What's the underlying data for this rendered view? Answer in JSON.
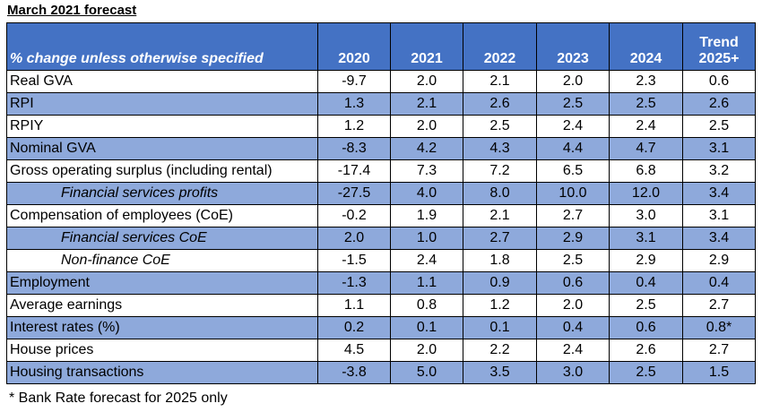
{
  "title": "March 2021 forecast",
  "header": {
    "label": "% change unless otherwise specified",
    "columns": [
      "2020",
      "2021",
      "2022",
      "2023",
      "2024"
    ],
    "trend_line1": "Trend",
    "trend_line2": "2025+"
  },
  "rows": [
    {
      "label": "Real GVA",
      "indent": false,
      "shaded": false,
      "values": [
        "-9.7",
        "2.0",
        "2.1",
        "2.0",
        "2.3",
        "0.6"
      ]
    },
    {
      "label": "RPI",
      "indent": false,
      "shaded": true,
      "values": [
        "1.3",
        "2.1",
        "2.6",
        "2.5",
        "2.5",
        "2.6"
      ]
    },
    {
      "label": "RPIY",
      "indent": false,
      "shaded": false,
      "values": [
        "1.2",
        "2.0",
        "2.5",
        "2.4",
        "2.4",
        "2.5"
      ]
    },
    {
      "label": "Nominal GVA",
      "indent": false,
      "shaded": true,
      "values": [
        "-8.3",
        "4.2",
        "4.3",
        "4.4",
        "4.7",
        "3.1"
      ]
    },
    {
      "label": "Gross operating surplus (including rental)",
      "indent": false,
      "shaded": false,
      "values": [
        "-17.4",
        "7.3",
        "7.2",
        "6.5",
        "6.8",
        "3.2"
      ]
    },
    {
      "label": "Financial services profits",
      "indent": true,
      "shaded": true,
      "values": [
        "-27.5",
        "4.0",
        "8.0",
        "10.0",
        "12.0",
        "3.4"
      ]
    },
    {
      "label": "Compensation of employees (CoE)",
      "indent": false,
      "shaded": false,
      "values": [
        "-0.2",
        "1.9",
        "2.1",
        "2.7",
        "3.0",
        "3.1"
      ]
    },
    {
      "label": "Financial services CoE",
      "indent": true,
      "shaded": true,
      "values": [
        "2.0",
        "1.0",
        "2.7",
        "2.9",
        "3.1",
        "3.4"
      ]
    },
    {
      "label": "Non-finance CoE",
      "indent": true,
      "shaded": false,
      "values": [
        "-1.5",
        "2.4",
        "1.8",
        "2.5",
        "2.9",
        "2.9"
      ]
    },
    {
      "label": "Employment",
      "indent": false,
      "shaded": true,
      "values": [
        "-1.3",
        "1.1",
        "0.9",
        "0.6",
        "0.4",
        "0.4"
      ]
    },
    {
      "label": "Average earnings",
      "indent": false,
      "shaded": false,
      "values": [
        "1.1",
        "0.8",
        "1.2",
        "2.0",
        "2.5",
        "2.7"
      ]
    },
    {
      "label": "Interest rates (%)",
      "indent": false,
      "shaded": true,
      "values": [
        "0.2",
        "0.1",
        "0.1",
        "0.4",
        "0.6",
        "0.8*"
      ]
    },
    {
      "label": "House prices",
      "indent": false,
      "shaded": false,
      "values": [
        "4.5",
        "2.0",
        "2.2",
        "2.4",
        "2.6",
        "2.7"
      ]
    },
    {
      "label": "Housing transactions",
      "indent": false,
      "shaded": true,
      "values": [
        "-3.8",
        "5.0",
        "3.5",
        "3.0",
        "2.5",
        "1.5"
      ]
    }
  ],
  "footnote": "* Bank Rate forecast for 2025 only",
  "colors": {
    "header_bg": "#4472c4",
    "header_text": "#ffffff",
    "shaded_row": "#8ea9db",
    "plain_row": "#ffffff"
  },
  "chart_data": {
    "type": "table",
    "title": "March 2021 forecast",
    "columns": [
      "% change unless otherwise specified",
      "2020",
      "2021",
      "2022",
      "2023",
      "2024",
      "Trend 2025+"
    ],
    "rows": [
      [
        "Real GVA",
        -9.7,
        2.0,
        2.1,
        2.0,
        2.3,
        0.6
      ],
      [
        "RPI",
        1.3,
        2.1,
        2.6,
        2.5,
        2.5,
        2.6
      ],
      [
        "RPIY",
        1.2,
        2.0,
        2.5,
        2.4,
        2.4,
        2.5
      ],
      [
        "Nominal GVA",
        -8.3,
        4.2,
        4.3,
        4.4,
        4.7,
        3.1
      ],
      [
        "Gross operating surplus (including rental)",
        -17.4,
        7.3,
        7.2,
        6.5,
        6.8,
        3.2
      ],
      [
        "Financial services profits",
        -27.5,
        4.0,
        8.0,
        10.0,
        12.0,
        3.4
      ],
      [
        "Compensation of employees (CoE)",
        -0.2,
        1.9,
        2.1,
        2.7,
        3.0,
        3.1
      ],
      [
        "Financial services CoE",
        2.0,
        1.0,
        2.7,
        2.9,
        3.1,
        3.4
      ],
      [
        "Non-finance CoE",
        -1.5,
        2.4,
        1.8,
        2.5,
        2.9,
        2.9
      ],
      [
        "Employment",
        -1.3,
        1.1,
        0.9,
        0.6,
        0.4,
        0.4
      ],
      [
        "Average earnings",
        1.1,
        0.8,
        1.2,
        2.0,
        2.5,
        2.7
      ],
      [
        "Interest rates (%)",
        0.2,
        0.1,
        0.1,
        0.4,
        0.6,
        "0.8*"
      ],
      [
        "House prices",
        4.5,
        2.0,
        2.2,
        2.4,
        2.6,
        2.7
      ],
      [
        "Housing transactions",
        -3.8,
        5.0,
        3.5,
        3.0,
        2.5,
        1.5
      ]
    ],
    "footnote": "* Bank Rate forecast for 2025 only"
  }
}
